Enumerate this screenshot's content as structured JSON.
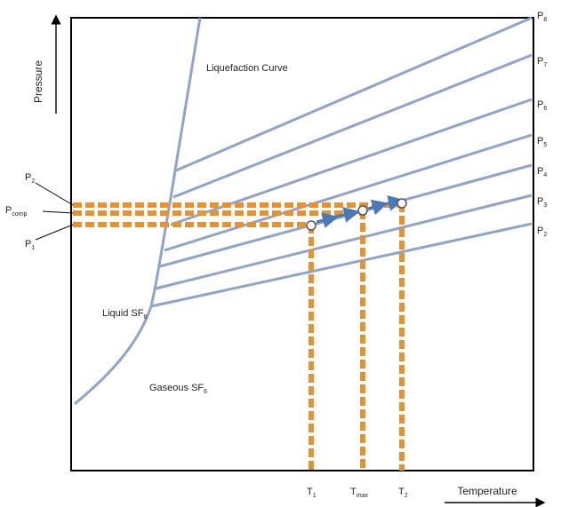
{
  "axes": {
    "y_label": "Pressure",
    "x_label": "Temperature"
  },
  "regions": {
    "liquefaction": "Liquefaction Curve",
    "liquid": "Liquid SF",
    "liquid_sub": "6",
    "gaseous": "Gaseous SF",
    "gaseous_sub": "6"
  },
  "right_labels": [
    "P",
    "P",
    "P",
    "P",
    "P",
    "P",
    "P"
  ],
  "right_label_subs": [
    "8",
    "7",
    "6",
    "5",
    "4",
    "3",
    "2"
  ],
  "left_labels": {
    "p2": {
      "main": "P",
      "sub": "2"
    },
    "pcomp": {
      "main": "P",
      "sub": "comp"
    },
    "p1": {
      "main": "P",
      "sub": "1"
    }
  },
  "bottom_labels": {
    "t1": {
      "main": "T",
      "sub": "1"
    },
    "tmax": {
      "main": "T",
      "sub": "max"
    },
    "t2": {
      "main": "T",
      "sub": "2"
    }
  },
  "colors": {
    "isobar": "#8fa3cc",
    "dashed": "#e8922e",
    "arrow": "#4a78b8",
    "frame": "#000000"
  }
}
